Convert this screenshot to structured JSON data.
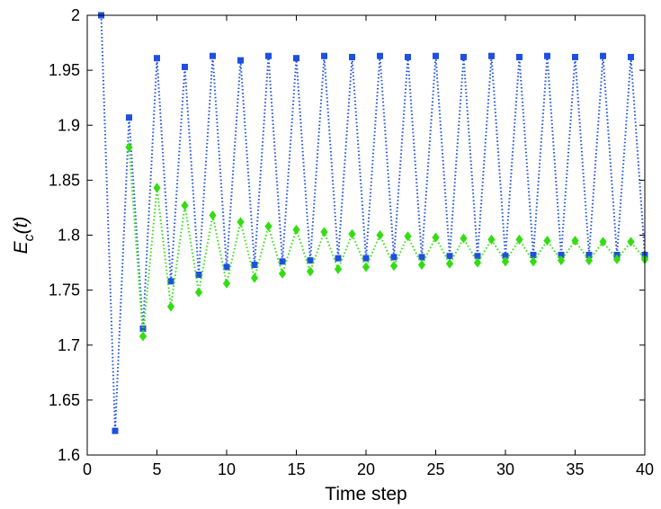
{
  "chart_data": {
    "type": "line",
    "title": "",
    "xlabel": "Time step",
    "ylabel": "E_c(t)",
    "ylabel_main": "E",
    "ylabel_sub": "c",
    "ylabel_arg": "(t)",
    "xlim": [
      0,
      40
    ],
    "ylim": [
      1.6,
      2.0
    ],
    "xticks": [
      0,
      5,
      10,
      15,
      20,
      25,
      30,
      35,
      40
    ],
    "yticks": [
      1.6,
      1.65,
      1.7,
      1.75,
      1.8,
      1.85,
      1.9,
      1.95,
      2.0
    ],
    "xtick_labels": [
      "0",
      "5",
      "10",
      "15",
      "20",
      "25",
      "30",
      "35",
      "40"
    ],
    "ytick_labels": [
      "1.6",
      "1.65",
      "1.7",
      "1.75",
      "1.8",
      "1.85",
      "1.9",
      "1.95",
      "2"
    ],
    "grid": false,
    "legend": "none",
    "series": [
      {
        "name": "blue squares",
        "color": "#1f4fe0",
        "marker": "square",
        "linestyle": "dotted",
        "x": [
          1,
          2,
          3,
          4,
          5,
          6,
          7,
          8,
          9,
          10,
          11,
          12,
          13,
          14,
          15,
          16,
          17,
          18,
          19,
          20,
          21,
          22,
          23,
          24,
          25,
          26,
          27,
          28,
          29,
          30,
          31,
          32,
          33,
          34,
          35,
          36,
          37,
          38,
          39,
          40
        ],
        "values": [
          2.0,
          1.622,
          1.907,
          1.715,
          1.961,
          1.758,
          1.953,
          1.764,
          1.963,
          1.771,
          1.959,
          1.773,
          1.963,
          1.776,
          1.961,
          1.777,
          1.963,
          1.779,
          1.962,
          1.779,
          1.963,
          1.78,
          1.962,
          1.78,
          1.963,
          1.781,
          1.962,
          1.781,
          1.963,
          1.781,
          1.962,
          1.782,
          1.963,
          1.782,
          1.962,
          1.782,
          1.963,
          1.782,
          1.962,
          1.782
        ]
      },
      {
        "name": "green diamonds",
        "color": "#33dd11",
        "marker": "diamond",
        "linestyle": "dotted",
        "x": [
          3,
          4,
          5,
          6,
          7,
          8,
          9,
          10,
          11,
          12,
          13,
          14,
          15,
          16,
          17,
          18,
          19,
          20,
          21,
          22,
          23,
          24,
          25,
          26,
          27,
          28,
          29,
          30,
          31,
          32,
          33,
          34,
          35,
          36,
          37,
          38,
          39,
          40
        ],
        "values": [
          1.88,
          1.708,
          1.843,
          1.735,
          1.827,
          1.748,
          1.818,
          1.756,
          1.812,
          1.761,
          1.808,
          1.765,
          1.805,
          1.767,
          1.803,
          1.769,
          1.801,
          1.771,
          1.8,
          1.772,
          1.799,
          1.773,
          1.798,
          1.774,
          1.797,
          1.775,
          1.796,
          1.776,
          1.796,
          1.776,
          1.795,
          1.777,
          1.795,
          1.777,
          1.794,
          1.778,
          1.794,
          1.778
        ]
      }
    ]
  }
}
